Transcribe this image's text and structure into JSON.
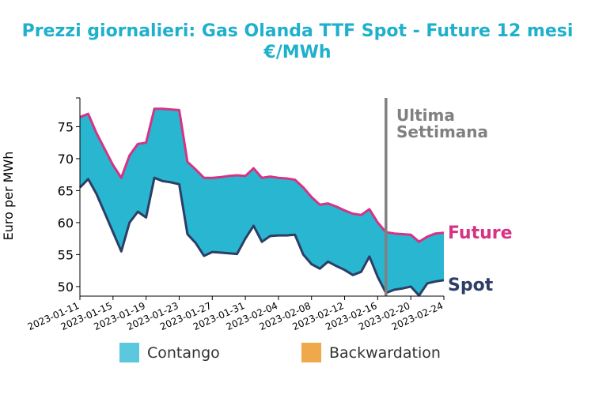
{
  "chart_data": {
    "type": "area",
    "title_line1": "Prezzi giornalieri: Gas Olanda TTF Spot - Future 12 mesi",
    "title_line2": "€/MWh",
    "xlabel": "",
    "ylabel": "Euro per MWh",
    "ylim": [
      48.5,
      79.5
    ],
    "yticks": [
      50,
      55,
      60,
      65,
      70,
      75
    ],
    "xticks": [
      "2023-01-11",
      "2023-01-15",
      "2023-01-19",
      "2023-01-23",
      "2023-01-27",
      "2023-01-31",
      "2023-02-04",
      "2023-02-08",
      "2023-02-12",
      "2023-02-16",
      "2023-02-20",
      "2023-02-24"
    ],
    "x_start": "2023-01-11",
    "x_end": "2023-02-24",
    "x": [
      "2023-01-11",
      "2023-01-12",
      "2023-01-13",
      "2023-01-14",
      "2023-01-15",
      "2023-01-16",
      "2023-01-17",
      "2023-01-18",
      "2023-01-19",
      "2023-01-20",
      "2023-01-21",
      "2023-01-22",
      "2023-01-23",
      "2023-01-24",
      "2023-01-25",
      "2023-01-26",
      "2023-01-27",
      "2023-01-28",
      "2023-01-29",
      "2023-01-30",
      "2023-01-31",
      "2023-02-01",
      "2023-02-02",
      "2023-02-03",
      "2023-02-04",
      "2023-02-05",
      "2023-02-06",
      "2023-02-07",
      "2023-02-08",
      "2023-02-09",
      "2023-02-10",
      "2023-02-11",
      "2023-02-12",
      "2023-02-13",
      "2023-02-14",
      "2023-02-15",
      "2023-02-16",
      "2023-02-17",
      "2023-02-18",
      "2023-02-19",
      "2023-02-20",
      "2023-02-21",
      "2023-02-22",
      "2023-02-23",
      "2023-02-24"
    ],
    "series": [
      {
        "name": "Future",
        "color": "#d63384",
        "values": [
          76.5,
          77,
          74,
          71.5,
          69,
          67,
          70.5,
          72.3,
          72.5,
          77.8,
          77.8,
          77.7,
          77.6,
          69.5,
          68.3,
          67,
          67,
          67.1,
          67.3,
          67.4,
          67.3,
          68.5,
          67,
          67.2,
          67,
          66.9,
          66.7,
          65.5,
          64,
          62.8,
          63,
          62.5,
          61.9,
          61.4,
          61.2,
          62.1,
          60,
          58.5,
          58.3,
          58.2,
          58.1,
          57,
          57.8,
          58.3,
          58.4
        ]
      },
      {
        "name": "Spot",
        "color": "#2c3e66",
        "values": [
          65.5,
          66.8,
          64.5,
          61.5,
          58.5,
          55.5,
          60,
          61.7,
          60.8,
          67,
          66.5,
          66.3,
          66,
          58.2,
          56.8,
          54.8,
          55.4,
          55.3,
          55.2,
          55.1,
          57.5,
          59.5,
          57,
          57.9,
          58,
          58,
          58.1,
          55,
          53.5,
          52.8,
          53.9,
          53.2,
          52.6,
          51.8,
          52.3,
          54.7,
          51.5,
          49,
          49.5,
          49.7,
          50,
          48.6,
          50.5,
          50.8,
          51
        ]
      }
    ],
    "fill_contango_color": "#29b6d0",
    "fill_backwardation_color": "#f0a94a",
    "vline_date": "2023-02-17",
    "vline_color": "#808080",
    "annotation": [
      "Ultima",
      "Settimana"
    ],
    "end_labels": {
      "future": "Future",
      "spot": "Spot"
    },
    "legend": [
      {
        "label": "Contango",
        "color": "#5bc8dd"
      },
      {
        "label": "Backwardation",
        "color": "#f0a94a"
      }
    ],
    "legend_position": "bottom"
  }
}
